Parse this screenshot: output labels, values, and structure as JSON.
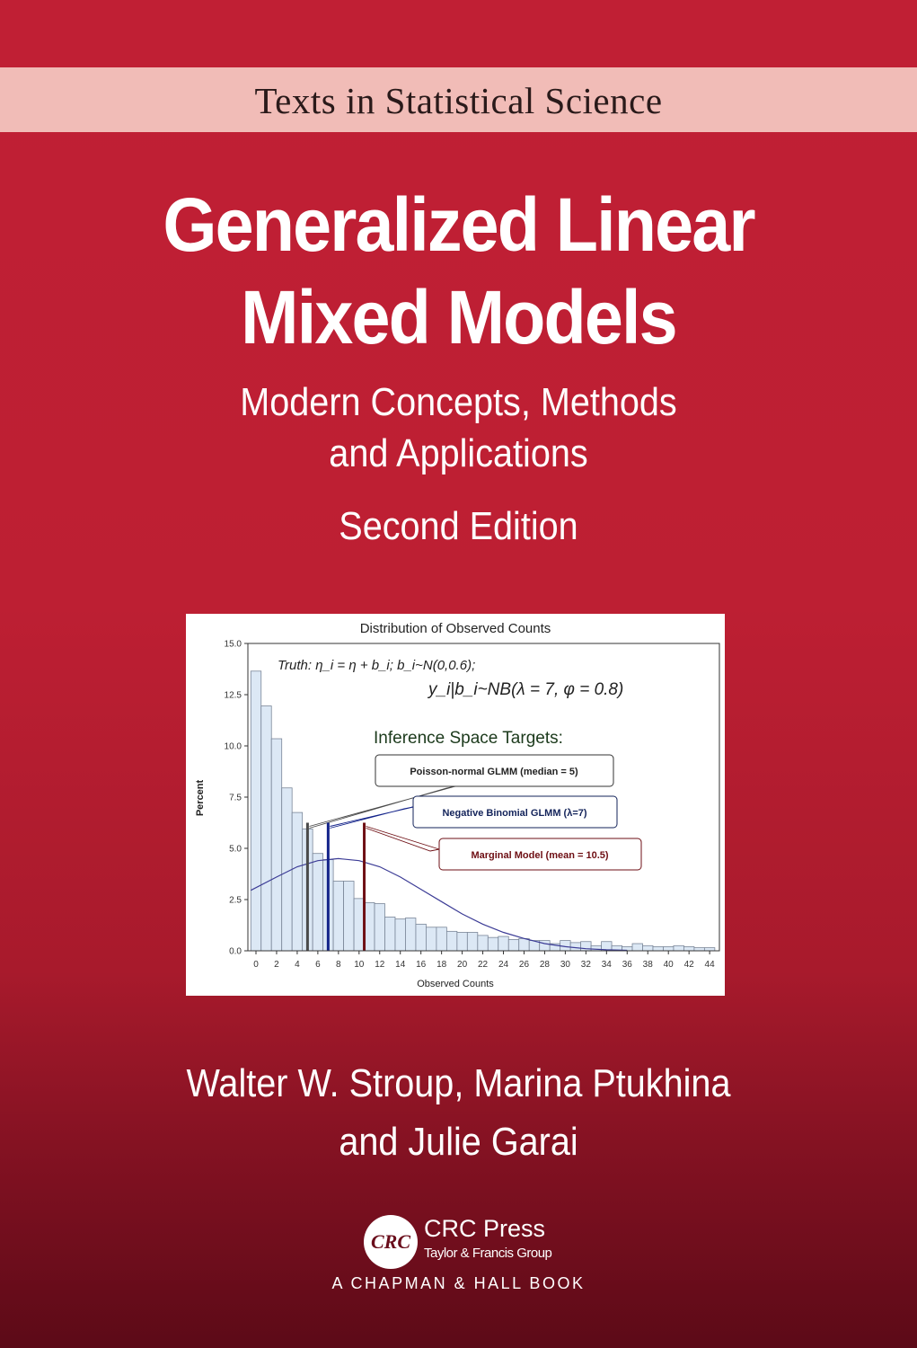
{
  "series_title": "Texts in Statistical Science",
  "title": {
    "line1": "Generalized Linear",
    "line2": "Mixed Models"
  },
  "subtitle": {
    "line1": "Modern Concepts, Methods",
    "line2": "and Applications"
  },
  "edition": "Second Edition",
  "authors": {
    "line1": "Walter W. Stroup, Marina Ptukhina",
    "line2": "and Julie Garai"
  },
  "publisher": {
    "logo_text": "CRC",
    "name": "CRC Press",
    "group": "Taylor & Francis Group",
    "imprint": "A CHAPMAN & HALL BOOK"
  },
  "colors": {
    "background_top": "#c01f34",
    "background_bottom": "#5c0a17",
    "band": "#f1bcb7",
    "bar_fill": "#dce8f5",
    "bar_stroke": "#7a8698",
    "curve": "#3c3c96",
    "median_line": "#4a4a4a",
    "nb_line": "#13238a",
    "marginal_line": "#6e0f14"
  },
  "chart_data": {
    "type": "bar",
    "title": "Distribution of Observed Counts",
    "xlabel": "Observed Counts",
    "ylabel": "Percent",
    "xlim": [
      -1,
      45
    ],
    "ylim": [
      0,
      15
    ],
    "yticks": [
      "0.0",
      "2.5",
      "5.0",
      "7.5",
      "10.0",
      "12.5",
      "15.0"
    ],
    "xticks": [
      "0",
      "2",
      "4",
      "6",
      "8",
      "10",
      "12",
      "14",
      "16",
      "18",
      "20",
      "22",
      "24",
      "26",
      "28",
      "30",
      "32",
      "34",
      "36",
      "38",
      "40",
      "42",
      "44"
    ],
    "grid": false,
    "x": [
      0,
      1,
      2,
      3,
      4,
      5,
      6,
      7,
      8,
      9,
      10,
      11,
      12,
      13,
      14,
      15,
      16,
      17,
      18,
      19,
      20,
      21,
      22,
      23,
      24,
      25,
      26,
      27,
      28,
      29,
      30,
      31,
      32,
      33,
      34,
      35,
      36,
      37,
      38,
      39,
      40,
      41,
      42,
      43,
      44
    ],
    "values": [
      13.65,
      11.95,
      10.35,
      7.95,
      6.75,
      5.95,
      4.75,
      4.45,
      3.4,
      3.4,
      2.55,
      2.35,
      2.3,
      1.65,
      1.55,
      1.6,
      1.3,
      1.15,
      1.15,
      0.95,
      0.9,
      0.9,
      0.75,
      0.65,
      0.7,
      0.55,
      0.6,
      0.5,
      0.5,
      0.35,
      0.5,
      0.4,
      0.45,
      0.25,
      0.45,
      0.25,
      0.2,
      0.35,
      0.25,
      0.2,
      0.2,
      0.25,
      0.2,
      0.15,
      0.15
    ],
    "curve": {
      "x": [
        -0.5,
        2,
        4,
        6,
        8,
        10,
        12,
        14,
        16,
        18,
        20,
        22,
        24,
        26,
        28,
        30,
        32,
        34,
        36
      ],
      "y": [
        2.95,
        3.6,
        4.1,
        4.4,
        4.5,
        4.4,
        4.1,
        3.6,
        3.0,
        2.4,
        1.8,
        1.3,
        0.9,
        0.6,
        0.35,
        0.2,
        0.1,
        0.05,
        0.02
      ]
    },
    "annotations": {
      "truth_line1": "Truth: η_i = η + b_i;  b_i~N(0,0.6);",
      "truth_line2": "y_i|b_i~NB(λ = 7, φ = 0.8)",
      "heading": "Inference Space Targets:",
      "targets": [
        {
          "label": "Poisson-normal GLMM (median =  5)",
          "x": 5,
          "height": 6.25,
          "color": "#4a4a4a",
          "text_color": "#222222"
        },
        {
          "label": "Negative Binomial GLMM (λ=7)",
          "x": 7,
          "height": 6.25,
          "color": "#13238a",
          "text_color": "#13235a"
        },
        {
          "label": "Marginal Model (mean = 10.5)",
          "x": 10.5,
          "height": 6.25,
          "color": "#6e0f14",
          "text_color": "#6e0f14"
        }
      ]
    }
  }
}
